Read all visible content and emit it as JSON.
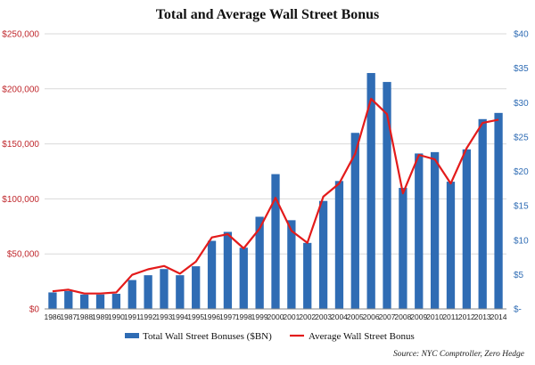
{
  "chart_data": {
    "type": "bar+line",
    "title": "Total and Average Wall Street Bonus",
    "categories": [
      "1986",
      "1987",
      "1988",
      "1989",
      "1990",
      "1991",
      "1992",
      "1993",
      "1994",
      "1995",
      "1996",
      "1997",
      "1998",
      "1999",
      "2000",
      "2001",
      "2002",
      "2003",
      "2004",
      "2005",
      "2006",
      "2007",
      "2008",
      "2009",
      "2010",
      "2011",
      "2012",
      "2013",
      "2014"
    ],
    "series": [
      {
        "name": "Total Wall Street Bonuses ($BN)",
        "type": "bar",
        "axis": "right",
        "color": "#2f6cb4",
        "values": [
          2.4,
          2.6,
          2.1,
          2.1,
          2.2,
          4.2,
          4.9,
          5.8,
          4.9,
          6.2,
          9.9,
          11.2,
          8.9,
          13.4,
          19.6,
          12.9,
          9.6,
          15.7,
          18.6,
          25.6,
          34.3,
          33.0,
          17.6,
          22.6,
          22.8,
          18.5,
          23.2,
          27.6,
          28.5
        ]
      },
      {
        "name": "Average Wall Street Bonus",
        "type": "line",
        "axis": "left",
        "color": "#e31b1b",
        "values": [
          16000,
          17500,
          14000,
          14000,
          15000,
          31000,
          36000,
          39000,
          32000,
          43000,
          65000,
          68000,
          55000,
          73000,
          101000,
          71000,
          60000,
          102000,
          114000,
          141000,
          191000,
          177000,
          105000,
          140000,
          136000,
          114000,
          146000,
          169000,
          172000
        ]
      }
    ],
    "y_left": {
      "ticks": [
        "$0",
        "$50,000",
        "$100,000",
        "$150,000",
        "$200,000",
        "$250,000"
      ],
      "lim": [
        0,
        250000
      ]
    },
    "y_right": {
      "ticks": [
        "$-",
        "$5",
        "$10",
        "$15",
        "$20",
        "$25",
        "$30",
        "$35",
        "$40"
      ],
      "lim": [
        0,
        40
      ]
    },
    "grid": "horizontal",
    "legend": "bottom",
    "source": "Source: NYC Comptroller, Zero Hedge"
  }
}
